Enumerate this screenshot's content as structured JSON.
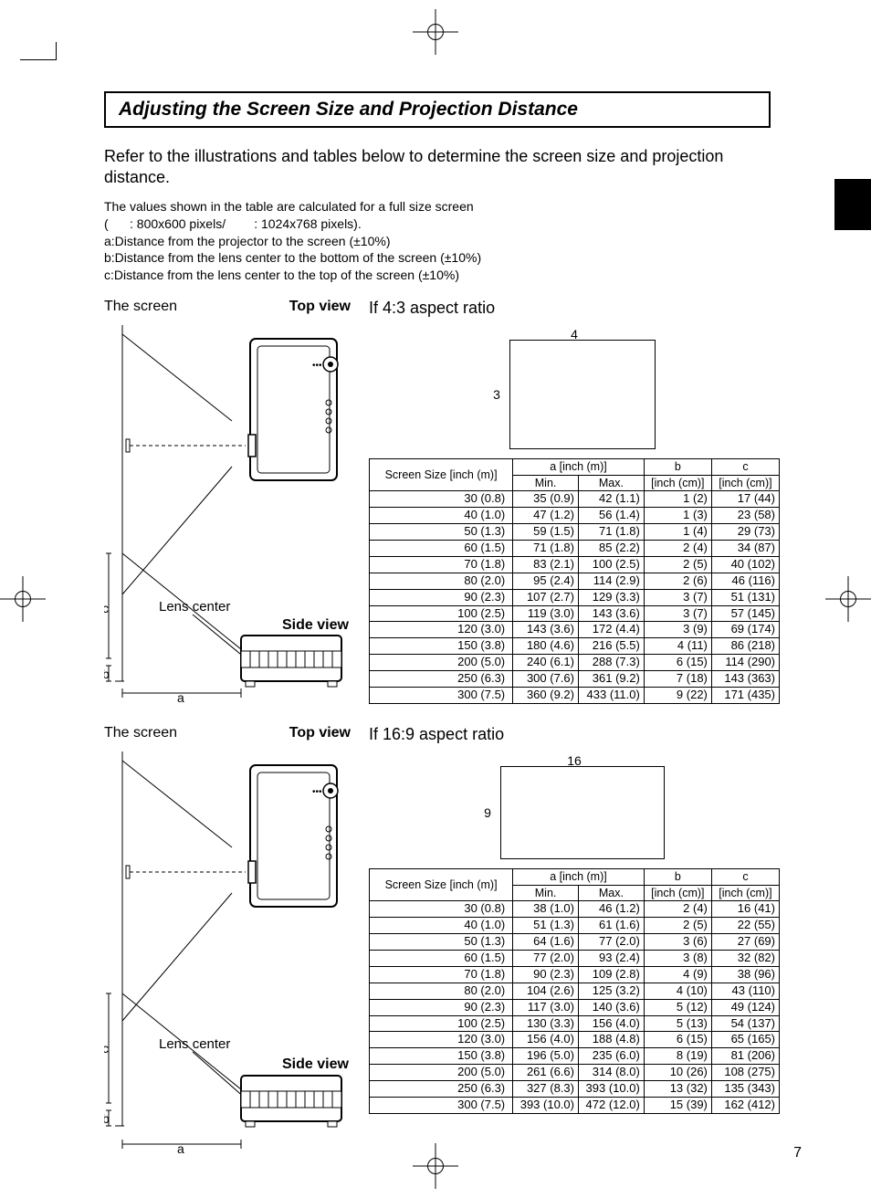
{
  "title": "Adjusting the Screen Size and Projection Distance",
  "intro": "Refer to the illustrations and tables below to determine the screen size and projection distance.",
  "notes": {
    "line1": "The values shown in the table are calculated for a full size screen",
    "line2_open": " (",
    "line2_res1": ": 800x600 pixels/",
    "line2_res2": ": 1024x768 pixels).",
    "a": "a:Distance from the projector to the screen (±10%)",
    "b": "b:Distance from the lens center to the bottom of the screen (±10%)",
    "c": "c:Distance from the lens center to the top of the screen (±10%)"
  },
  "labels": {
    "the_screen": "The screen",
    "top_view": "Top view",
    "side_view": "Side view",
    "lens_center": "Lens center",
    "ratio_43": "If 4:3 aspect ratio",
    "ratio_169": "If 16:9 aspect ratio",
    "a": "a",
    "b": "b",
    "c": "c",
    "four": "4",
    "three": "3",
    "sixteen": "16",
    "nine": "9"
  },
  "table_headers": {
    "screen_size": "Screen Size [inch (m)]",
    "a": "a [inch (m)]",
    "min": "Min.",
    "max": "Max.",
    "b": "b",
    "c": "c",
    "inch_cm": "[inch (cm)]"
  },
  "table_43": {
    "rows": [
      {
        "size": "30 (0.8)",
        "min": "35 (0.9)",
        "max": "42 (1.1)",
        "b": "1 (2)",
        "c": "17 (44)"
      },
      {
        "size": "40 (1.0)",
        "min": "47 (1.2)",
        "max": "56 (1.4)",
        "b": "1 (3)",
        "c": "23 (58)"
      },
      {
        "size": "50 (1.3)",
        "min": "59 (1.5)",
        "max": "71 (1.8)",
        "b": "1 (4)",
        "c": "29 (73)"
      },
      {
        "size": "60 (1.5)",
        "min": "71 (1.8)",
        "max": "85 (2.2)",
        "b": "2 (4)",
        "c": "34 (87)"
      },
      {
        "size": "70 (1.8)",
        "min": "83 (2.1)",
        "max": "100 (2.5)",
        "b": "2 (5)",
        "c": "40 (102)"
      },
      {
        "size": "80 (2.0)",
        "min": "95 (2.4)",
        "max": "114 (2.9)",
        "b": "2 (6)",
        "c": "46 (116)"
      },
      {
        "size": "90 (2.3)",
        "min": "107 (2.7)",
        "max": "129 (3.3)",
        "b": "3 (7)",
        "c": "51 (131)"
      },
      {
        "size": "100 (2.5)",
        "min": "119 (3.0)",
        "max": "143 (3.6)",
        "b": "3 (7)",
        "c": "57 (145)"
      },
      {
        "size": "120 (3.0)",
        "min": "143 (3.6)",
        "max": "172 (4.4)",
        "b": "3 (9)",
        "c": "69 (174)"
      },
      {
        "size": "150 (3.8)",
        "min": "180 (4.6)",
        "max": "216 (5.5)",
        "b": "4 (11)",
        "c": "86 (218)"
      },
      {
        "size": "200 (5.0)",
        "min": "240 (6.1)",
        "max": "288 (7.3)",
        "b": "6 (15)",
        "c": "114 (290)"
      },
      {
        "size": "250 (6.3)",
        "min": "300 (7.6)",
        "max": "361 (9.2)",
        "b": "7 (18)",
        "c": "143 (363)"
      },
      {
        "size": "300 (7.5)",
        "min": "360 (9.2)",
        "max": "433 (11.0)",
        "b": "9 (22)",
        "c": "171 (435)"
      }
    ]
  },
  "table_169": {
    "rows": [
      {
        "size": "30 (0.8)",
        "min": "38 (1.0)",
        "max": "46 (1.2)",
        "b": "2 (4)",
        "c": "16 (41)"
      },
      {
        "size": "40 (1.0)",
        "min": "51 (1.3)",
        "max": "61 (1.6)",
        "b": "2 (5)",
        "c": "22 (55)"
      },
      {
        "size": "50 (1.3)",
        "min": "64 (1.6)",
        "max": "77 (2.0)",
        "b": "3 (6)",
        "c": "27 (69)"
      },
      {
        "size": "60 (1.5)",
        "min": "77 (2.0)",
        "max": "93 (2.4)",
        "b": "3 (8)",
        "c": "32 (82)"
      },
      {
        "size": "70 (1.8)",
        "min": "90 (2.3)",
        "max": "109 (2.8)",
        "b": "4 (9)",
        "c": "38 (96)"
      },
      {
        "size": "80 (2.0)",
        "min": "104 (2.6)",
        "max": "125 (3.2)",
        "b": "4 (10)",
        "c": "43 (110)"
      },
      {
        "size": "90 (2.3)",
        "min": "117 (3.0)",
        "max": "140 (3.6)",
        "b": "5 (12)",
        "c": "49 (124)"
      },
      {
        "size": "100 (2.5)",
        "min": "130 (3.3)",
        "max": "156 (4.0)",
        "b": "5 (13)",
        "c": "54 (137)"
      },
      {
        "size": "120 (3.0)",
        "min": "156 (4.0)",
        "max": "188 (4.8)",
        "b": "6 (15)",
        "c": "65 (165)"
      },
      {
        "size": "150 (3.8)",
        "min": "196 (5.0)",
        "max": "235 (6.0)",
        "b": "8 (19)",
        "c": "81 (206)"
      },
      {
        "size": "200 (5.0)",
        "min": "261 (6.6)",
        "max": "314 (8.0)",
        "b": "10 (26)",
        "c": "108 (275)"
      },
      {
        "size": "250 (6.3)",
        "min": "327 (8.3)",
        "max": "393 (10.0)",
        "b": "13 (32)",
        "c": "135 (343)"
      },
      {
        "size": "300 (7.5)",
        "min": "393 (10.0)",
        "max": "472 (12.0)",
        "b": "15 (39)",
        "c": "162 (412)"
      }
    ]
  },
  "page_number": "7"
}
